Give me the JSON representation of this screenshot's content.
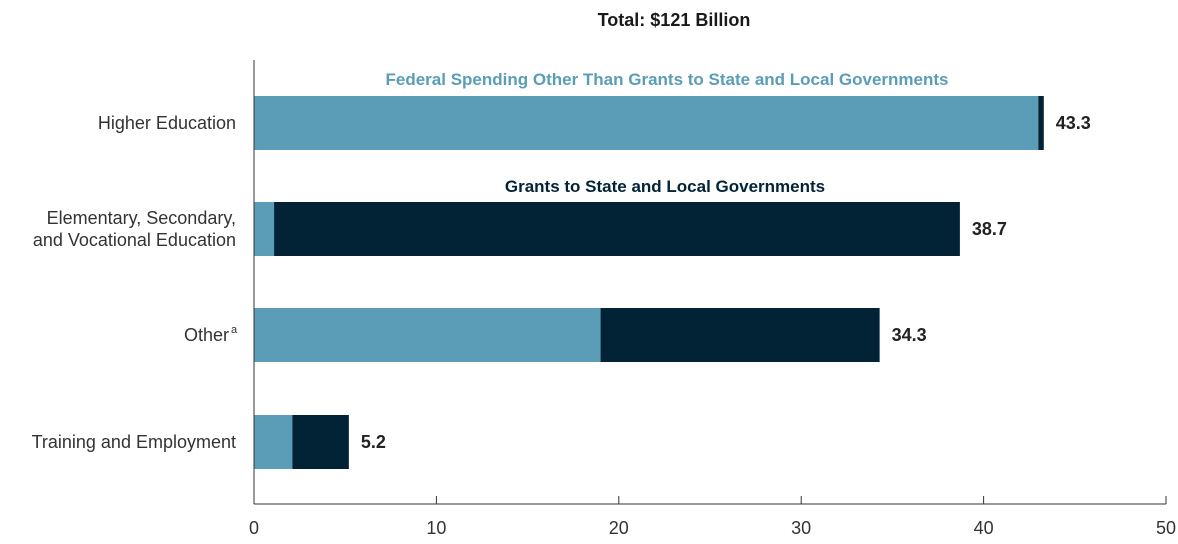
{
  "chart_data": {
    "type": "bar",
    "orientation": "horizontal",
    "stacked": true,
    "title": "Total: $121 Billion",
    "categories": [
      {
        "lines": [
          "Higher Education"
        ],
        "superscript": ""
      },
      {
        "lines": [
          "Elementary, Secondary,",
          "and Vocational Education"
        ],
        "superscript": ""
      },
      {
        "lines": [
          "Other"
        ],
        "superscript": "a"
      },
      {
        "lines": [
          "Training and Employment"
        ],
        "superscript": ""
      }
    ],
    "series": [
      {
        "name": "Federal Spending Other Than Grants to State and Local Governments",
        "color": "#5b9db7",
        "values": [
          43.0,
          1.1,
          19.0,
          2.1
        ]
      },
      {
        "name": "Grants to State and Local Governments",
        "color": "#022336",
        "values": [
          0.3,
          37.6,
          15.3,
          3.1
        ]
      }
    ],
    "totals": [
      "43.3",
      "38.7",
      "34.3",
      "5.2"
    ],
    "xlim": [
      0,
      50
    ],
    "xticks": [
      "0",
      "10",
      "20",
      "30",
      "40",
      "50"
    ],
    "grid": false
  }
}
